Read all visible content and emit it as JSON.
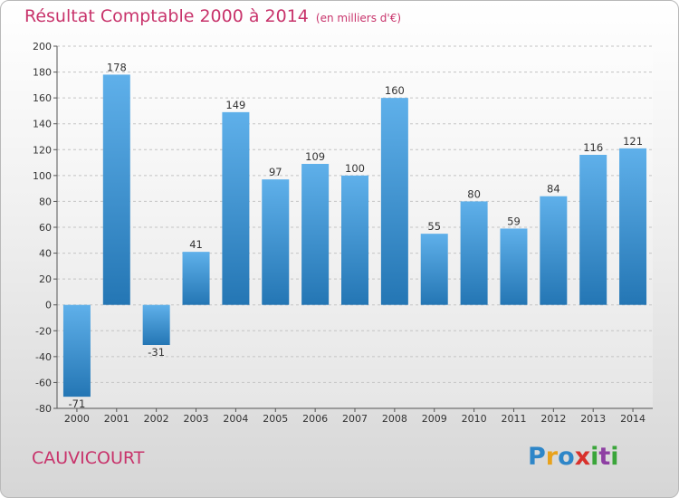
{
  "title": "Résultat Comptable 2000 à 2014",
  "unit": "(en milliers d'€)",
  "commune": "CAUVICOURT",
  "logo": {
    "letters": [
      "P",
      "r",
      "o",
      "x",
      "i",
      "t",
      "i"
    ],
    "colors": [
      "#2e86c8",
      "#e8a21c",
      "#2e86c8",
      "#d8312c",
      "#3aa53a",
      "#8e3fa3",
      "#3aa53a"
    ]
  },
  "colors": {
    "bar_top": "#5fb0ea",
    "bar_bottom": "#2476b4",
    "title": "#c8336b"
  },
  "chart_data": {
    "type": "bar",
    "categories": [
      "2000",
      "2001",
      "2002",
      "2003",
      "2004",
      "2005",
      "2006",
      "2007",
      "2008",
      "2009",
      "2010",
      "2011",
      "2012",
      "2013",
      "2014"
    ],
    "values": [
      -71,
      178,
      -31,
      41,
      149,
      97,
      109,
      100,
      160,
      55,
      80,
      59,
      84,
      116,
      121
    ],
    "data_labels": [
      "-71",
      "178",
      "-31",
      "41",
      "149",
      "97",
      "109",
      "100",
      "160",
      "55",
      "80",
      "59",
      "84",
      "116",
      "121"
    ],
    "y_ticks": [
      "200",
      "180",
      "160",
      "140",
      "120",
      "100",
      "80",
      "60",
      "40",
      "20",
      "0",
      "-20",
      "-40",
      "-60",
      "-80"
    ],
    "ylim": [
      -80,
      200
    ],
    "grid": true,
    "legend": "none"
  }
}
